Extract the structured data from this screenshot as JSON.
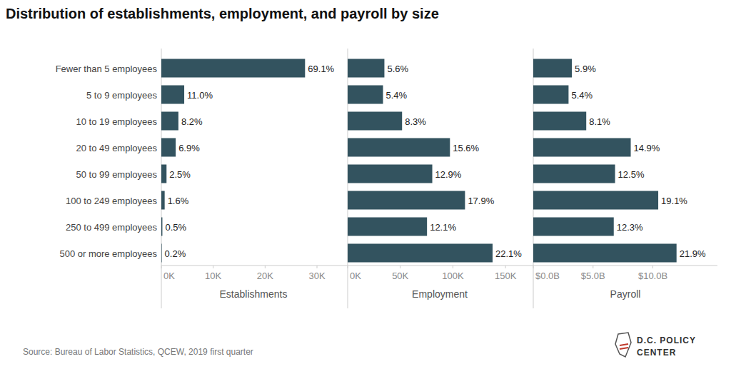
{
  "title": "Distribution of establishments, employment, and payroll by size",
  "source": "Source: Bureau of Labor Statistics, QCEW, 2019 first quarter",
  "logo": [
    "D.C. POLICY",
    "CENTER"
  ],
  "chart_data": [
    {
      "type": "bar",
      "orientation": "horizontal",
      "xlabel": "Establishments",
      "categories": [
        "Fewer than 5 employees",
        "5 to 9 employees",
        "10 to 19 employees",
        "20 to 49 employees",
        "50 to 99 employees",
        "100 to 249 employees",
        "250 to 499 employees",
        "500 or more employees"
      ],
      "values": [
        27700,
        4410,
        3290,
        2770,
        1000,
        640,
        200,
        80
      ],
      "share_labels": [
        "69.1%",
        "11.0%",
        "8.2%",
        "6.9%",
        "2.5%",
        "1.6%",
        "0.5%",
        "0.2%"
      ],
      "color": "#33535f",
      "grid": false,
      "xlim": [
        0,
        35500
      ],
      "xticks": [
        {
          "value": 0,
          "label": "0K"
        },
        {
          "value": 10000,
          "label": "10K"
        },
        {
          "value": 20000,
          "label": "20K"
        },
        {
          "value": 30000,
          "label": "30K"
        }
      ]
    },
    {
      "type": "bar",
      "orientation": "horizontal",
      "xlabel": "Employment",
      "values": [
        34900,
        33600,
        51700,
        97200,
        80400,
        111500,
        75400,
        137700
      ],
      "share_labels": [
        "5.6%",
        "5.4%",
        "8.3%",
        "15.6%",
        "12.9%",
        "17.9%",
        "12.1%",
        "22.1%"
      ],
      "color": "#33535f",
      "grid": false,
      "xlim": [
        0,
        175000
      ],
      "xticks": [
        {
          "value": 0,
          "label": "0K"
        },
        {
          "value": 50000,
          "label": "50K"
        },
        {
          "value": 100000,
          "label": "100K"
        },
        {
          "value": 150000,
          "label": "150K"
        }
      ]
    },
    {
      "type": "bar",
      "orientation": "horizontal",
      "xlabel": "Payroll",
      "values": [
        3230000000,
        2950000000,
        4430000000,
        8150000000,
        6840000000,
        10450000000,
        6730000000,
        11980000000
      ],
      "share_labels": [
        "5.9%",
        "5.4%",
        "8.1%",
        "14.9%",
        "12.5%",
        "19.1%",
        "12.3%",
        "21.9%"
      ],
      "color": "#33535f",
      "grid": false,
      "xlim": [
        0,
        15400000000
      ],
      "xticks": [
        {
          "value": 0,
          "label": "$0.0B"
        },
        {
          "value": 5000000000,
          "label": "$5.0B"
        },
        {
          "value": 10000000000,
          "label": "$10.0B"
        }
      ]
    }
  ]
}
